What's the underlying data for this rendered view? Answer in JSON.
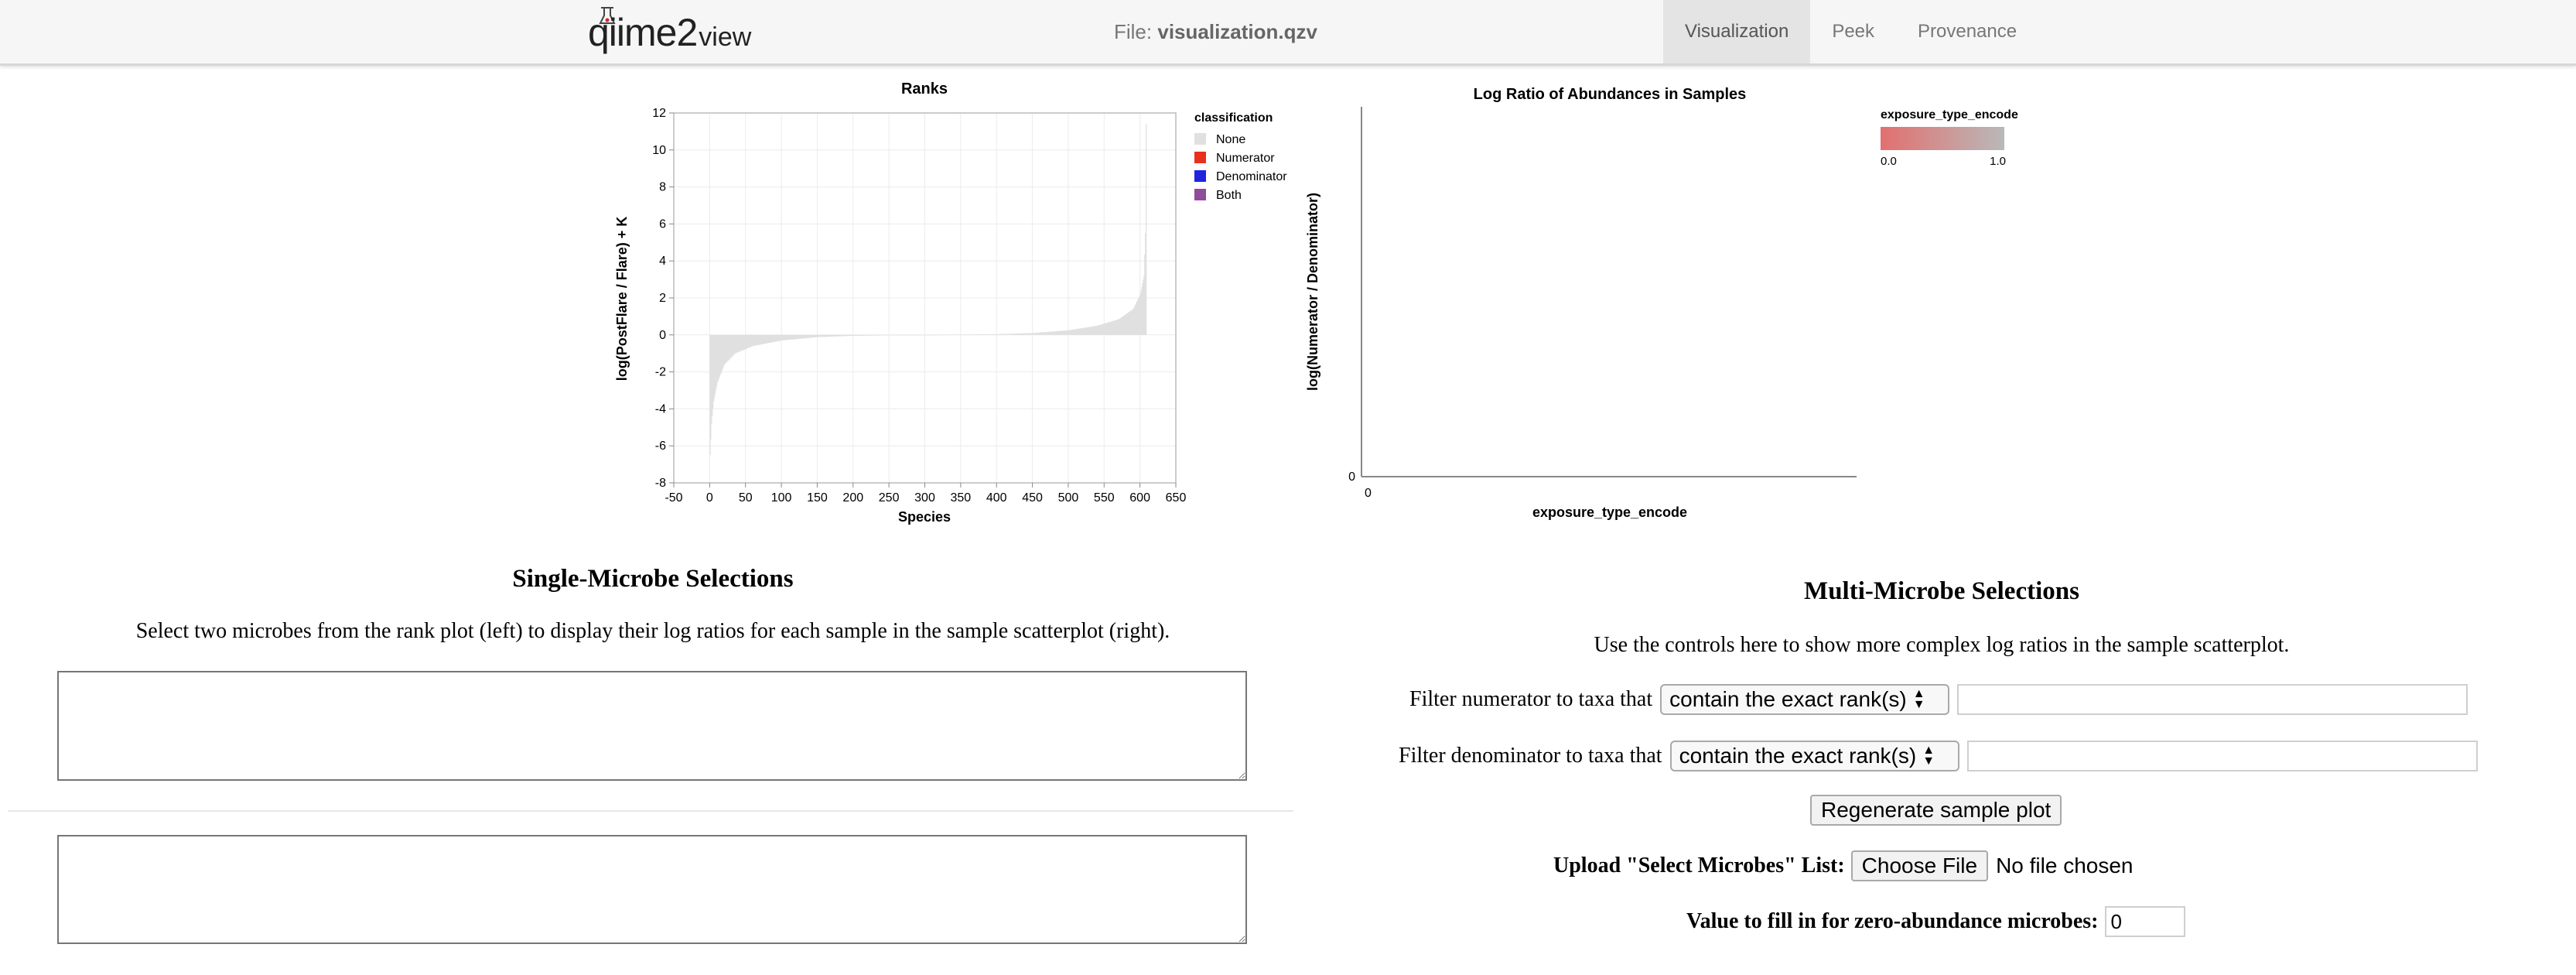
{
  "header": {
    "logo_main": "qiime2",
    "logo_small": "view",
    "file_label": "File:",
    "file_name": "visualization.qzv",
    "nav": [
      {
        "label": "Visualization",
        "active": true
      },
      {
        "label": "Peek",
        "active": false
      },
      {
        "label": "Provenance",
        "active": false
      }
    ]
  },
  "ranks_chart": {
    "title": "Ranks",
    "xlabel": "Species",
    "ylabel": "log(PostFlare / Flare) + K",
    "x_ticks": [
      -50,
      0,
      50,
      100,
      150,
      200,
      250,
      300,
      350,
      400,
      450,
      500,
      550,
      600,
      650
    ],
    "y_ticks": [
      -8,
      -6,
      -4,
      -2,
      0,
      2,
      4,
      6,
      8,
      10,
      12
    ],
    "legend": {
      "title": "classification",
      "items": [
        {
          "label": "None",
          "color": "#e0e0e0"
        },
        {
          "label": "Numerator",
          "color": "#e8301c"
        },
        {
          "label": "Denominator",
          "color": "#1f24e0"
        },
        {
          "label": "Both",
          "color": "#8f4c9a"
        }
      ]
    }
  },
  "chart_data": [
    {
      "type": "bar",
      "title": "Ranks",
      "xlabel": "Species",
      "ylabel": "log(PostFlare / Flare) + K",
      "xlim": [
        -50,
        650
      ],
      "ylim": [
        -8,
        12
      ],
      "grid": true,
      "legend_position": "right",
      "series_color": "#e0e0e0",
      "n_species": 609,
      "profile": [
        {
          "x": 0,
          "y": -6.5
        },
        {
          "x": 2,
          "y": -4.8
        },
        {
          "x": 5,
          "y": -3.6
        },
        {
          "x": 10,
          "y": -2.6
        },
        {
          "x": 20,
          "y": -1.6
        },
        {
          "x": 35,
          "y": -1.0
        },
        {
          "x": 60,
          "y": -0.6
        },
        {
          "x": 100,
          "y": -0.3
        },
        {
          "x": 150,
          "y": -0.12
        },
        {
          "x": 200,
          "y": -0.05
        },
        {
          "x": 300,
          "y": 0.0
        },
        {
          "x": 400,
          "y": 0.04
        },
        {
          "x": 450,
          "y": 0.1
        },
        {
          "x": 500,
          "y": 0.25
        },
        {
          "x": 540,
          "y": 0.5
        },
        {
          "x": 570,
          "y": 0.85
        },
        {
          "x": 590,
          "y": 1.4
        },
        {
          "x": 600,
          "y": 2.2
        },
        {
          "x": 605,
          "y": 3.2
        },
        {
          "x": 607,
          "y": 5.5
        },
        {
          "x": 608,
          "y": 11.4
        }
      ]
    },
    {
      "type": "scatter",
      "title": "Log Ratio of Abundances in Samples",
      "xlabel": "exposure_type_encode",
      "ylabel": "log(Numerator / Denominator)",
      "x_ticks": [
        0
      ],
      "y_ticks": [
        0
      ],
      "points": [],
      "legend": {
        "title": "exposure_type_encode",
        "gradient": [
          "#e2706f",
          "#b9b9b9"
        ],
        "min_label": "0.0",
        "max_label": "1.0"
      }
    }
  ],
  "single": {
    "title": "Single-Microbe Selections",
    "description": "Select two microbes from the rank plot (left) to display their log ratios for each sample in the sample scatterplot (right).",
    "box1_value": "",
    "box2_value": ""
  },
  "multi": {
    "title": "Multi-Microbe Selections",
    "description": "Use the controls here to show more complex log ratios in the sample scatterplot.",
    "numerator_label": "Filter numerator to taxa that",
    "numerator_select": "contain the exact rank(s)",
    "numerator_value": "",
    "denominator_label": "Filter denominator to taxa that",
    "denominator_select": "contain the exact rank(s)",
    "denominator_value": "",
    "regenerate_label": "Regenerate sample plot",
    "upload_label": "Upload \"Select Microbes\" List:",
    "choose_file_label": "Choose File",
    "no_file_label": "No file chosen",
    "zero_label": "Value to fill in for zero-abundance microbes:",
    "zero_value": "0"
  }
}
